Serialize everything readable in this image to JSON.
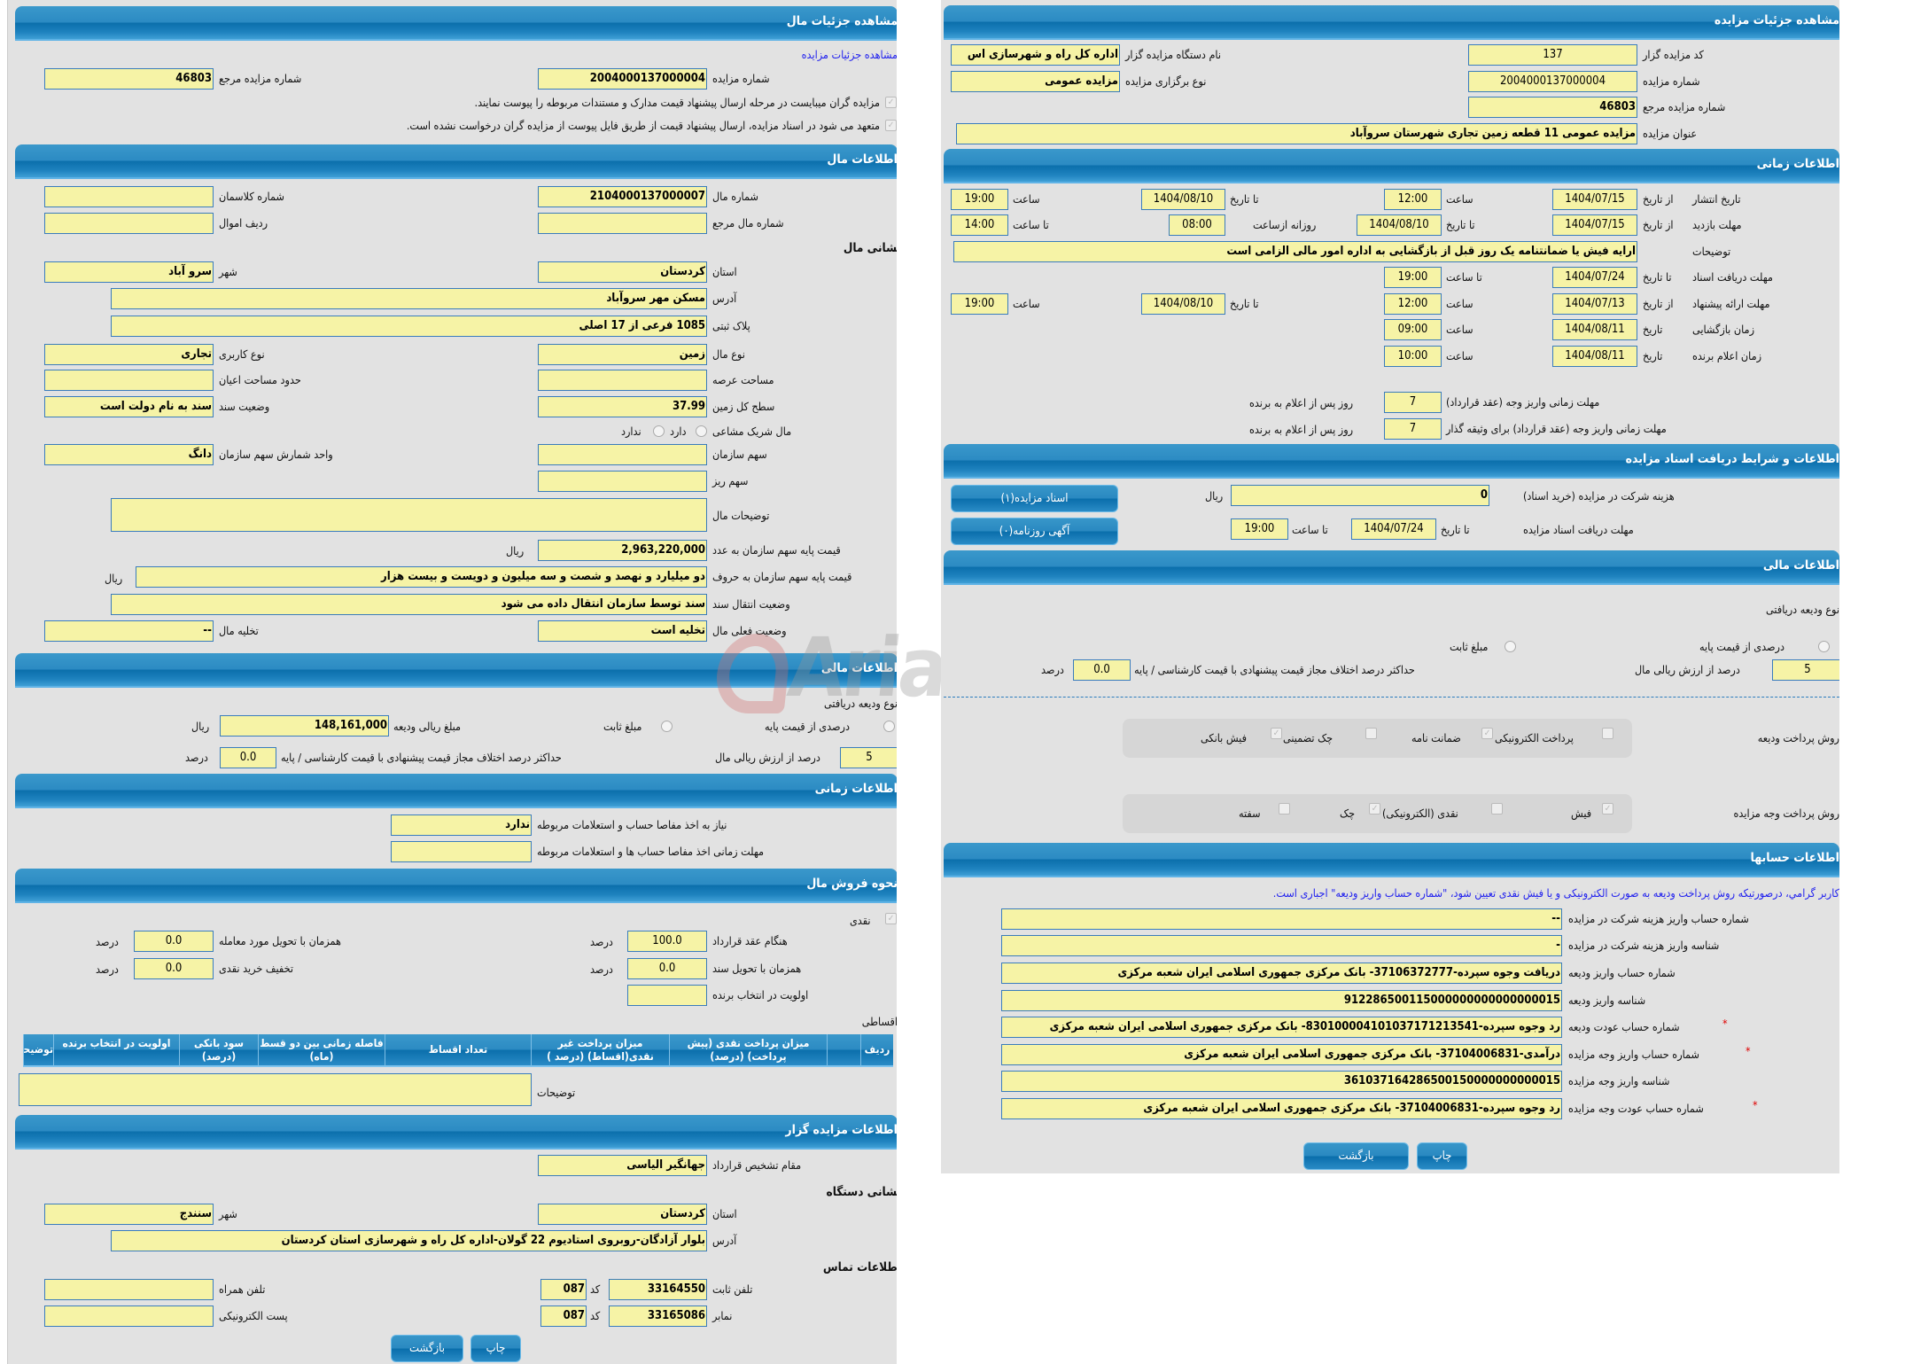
{
  "watermark": "AriaTender.neT",
  "colors": {
    "header": "#2c8bc3",
    "input_bg": "#f6f3a6",
    "input_border": "#3a7cbc",
    "panel_bg": "#e2e2e2",
    "link": "#2222ee",
    "required": "#e00000"
  },
  "left": {
    "title": "مشاهده جزئیات مال",
    "link": "مشاهده جزئیات مزایده",
    "auction_no_label": "شماره مزایده",
    "auction_no": "2004000137000004",
    "ref_no_label": "شماره مزایده مرجع",
    "ref_no": "46803",
    "check1": "مزایده گران میبایست در مرحله ارسال پیشنهاد قیمت مدارک و مستندات مربوطه را پیوست نمایند.",
    "check2": "متعهد می شود در اسناد مزایده، ارسال پیشنهاد قیمت از طریق فایل پیوست از مزایده گران درخواست نشده است.",
    "item_section": "اطلاعات مال",
    "item_no_label": "شماره مال",
    "item_no": "2104000137000007",
    "class_no_label": "شماره کلاسمان",
    "class_no": "",
    "item_ref_label": "شماره مال مرجع",
    "item_ref": "",
    "asset_row_label": "ردیف اموال",
    "asset_row": "",
    "address_heading": "نشانی مال",
    "province_label": "استان",
    "province": "کردستان",
    "city_label": "شهر",
    "city": "سرو آباد",
    "address_label": "آدرس",
    "address": "مسکن مهر سروآباد",
    "plaque_label": "پلاک ثبتی",
    "plaque": "1085 فرعی از 17 اصلی",
    "item_type_label": "نوع مال",
    "item_type": "زمین",
    "usage_label": "نوع کاربری",
    "usage": "تجاری",
    "land_area_label": "مساحت عرصه",
    "land_area": "",
    "building_area_label": "حدود مساحت اعیان",
    "building_area": "",
    "total_area_label": "سطح کل زمین",
    "total_area": "37.99",
    "deed_status_label": "وضعیت سند",
    "deed_status": "سند به نام دولت است",
    "partner_label": "مال شریک مشاعی",
    "partner_yes": "دارد",
    "partner_no": "ندارد",
    "org_share_label": "سهم سازمان",
    "org_share": "",
    "share_unit_label": "واحد شمارش سهم سازمان",
    "share_unit": "دانگ",
    "sub_share_label": "سهم ریز",
    "sub_share": "",
    "desc_label": "توضیحات مال",
    "desc": "",
    "base_price_num_label": "قیمت پایه سهم سازمان به عدد",
    "base_price_num": "2,963,220,000",
    "rial": "ریال",
    "base_price_words_label": "قیمت پایه سهم سازمان به حروف",
    "base_price_words": "دو میلیارد و نهصد و شصت و سه میلیون و دویست و بیست هزار",
    "transfer_label": "وضعیت انتقال سند",
    "transfer": "سند توسط سازمان انتقال داده می شود",
    "current_status_label": "وضعیت فعلی مال",
    "current_status": "تخلیه است",
    "evacuation_label": "تخلیه مال",
    "evacuation": "--",
    "finance_section": "اطلاعات مالی",
    "deposit_type_label": "نوع ودیعه دریافتی",
    "deposit_percent_label": "درصدی از قیمت پایه",
    "deposit_fixed_label": "مبلغ ثابت",
    "deposit_amount_label": "مبلغ ریالی ودیعه",
    "deposit_amount": "148,161,000",
    "deposit_pct": "5",
    "deposit_pct_label": "درصد از ارزش ریالی مال",
    "max_diff_label": "حداکثر درصد اختلاف مجاز قیمت پیشنهادی با قیمت کارشناسی / پایه",
    "max_diff": "0.0",
    "percent": "درصد",
    "time_section": "اطلاعات زمانی",
    "clearance_label": "نیاز به اخذ مفاصا حساب و استعلامات مربوطه",
    "clearance": "ندارد",
    "clearance_deadline_label": "مهلت زمانی اخذ مفاصا حساب ها و استعلامات مربوطه",
    "clearance_deadline": "",
    "sale_section": "نحوه فروش مال",
    "cash_label": "نقدی",
    "on_contract_label": "هنگام عقد قرارداد",
    "on_contract": "100.0",
    "on_delivery_label": "همزمان با تحویل مورد معامله",
    "on_delivery": "0.0",
    "on_deed_label": "همزمان با تحویل سند",
    "on_deed": "0.0",
    "cash_discount_label": "تخفیف خرید نقدی",
    "cash_discount": "0.0",
    "winner_priority_label": "اولویت در انتخاب برنده",
    "winner_priority": "",
    "installment_label": "اقساطی",
    "table_headers": [
      "ردیف",
      "",
      "میزان پرداخت نقدی (پیش پرداخت) (درصد)",
      "میزان پرداخت غیر نقدی(اقساط) (درصد )",
      "تعداد اقساط",
      "فاصله زمانی بین دو قسط (ماه)",
      "سود بانکی (درصد)",
      "اولویت در انتخاب برنده",
      "توضیحات"
    ],
    "notes_label": "توضیحات",
    "notes": "",
    "auctioneer_section": "اطلاعات مزایده گزار",
    "authority_label": "مقام تشخیص قرارداد",
    "authority": "جهانگیر الیاسی",
    "org_address_heading": "نشانی دستگاه",
    "org_province_label": "استان",
    "org_province": "کردستان",
    "org_city_label": "شهر",
    "org_city": "سنندج",
    "org_address_label": "آدرس",
    "org_address": "بلوار آزادگان-روبروی استادیوم 22 گولان-اداره کل راه و شهرسازی استان کردستان",
    "contact_heading": "اطلاعات تماس",
    "phone_label": "تلفن ثابت",
    "phone": "33164550",
    "code_label": "کد",
    "phone_code": "087",
    "mobile_label": "تلفن همراه",
    "mobile": "",
    "fax_label": "نمابر",
    "fax": "33165086",
    "fax_code": "087",
    "email_label": "پست الکترونیکی",
    "email": "",
    "back": "بازگشت",
    "print": "چاپ"
  },
  "right": {
    "title": "مشاهده جزئیات مزایده",
    "org_code_label": "کد مزایده گزار",
    "org_code": "137",
    "org_name_label": "نام دستگاه مزایده گزار",
    "org_name": "اداره کل راه و شهرسازی اس",
    "auction_no_label": "شماره مزایده",
    "auction_no": "2004000137000004",
    "holding_type_label": "نوع برگزاری مزایده",
    "holding_type": "مزایده عمومی",
    "ref_no_label": "شماره مزایده مرجع",
    "ref_no": "46803",
    "subject_label": "عنوان مزایده",
    "subject": "مزایده عمومی 11 قطعه زمین تجاری شهرستان سروآباد",
    "time_section": "اطلاعات زمانی",
    "from_date": "از تاریخ",
    "to_date": "تا تاریخ",
    "time": "ساعت",
    "to_time": "تا ساعت",
    "date": "تاریخ",
    "daily_from": "روزانه ازساعت",
    "publish_label": "تاریخ انتشار",
    "publish_from": "1404/07/15",
    "publish_from_time": "12:00",
    "publish_to": "1404/08/10",
    "publish_to_time": "19:00",
    "visit_label": "مهلت بازدید",
    "visit_from": "1404/07/15",
    "visit_to": "1404/08/10",
    "visit_daily_from": "08:00",
    "visit_to_time": "14:00",
    "desc_label": "توضیحات",
    "desc": "ارایه فیش یا ضمانتنامه یک روز قبل از بازگشایی به اداره امور مالی الزامی است",
    "docs_deadline_label": "مهلت دریافت اسناد",
    "docs_to": "1404/07/24",
    "docs_to_time": "19:00",
    "offer_label": "مهلت ارائه پیشنهاد",
    "offer_from": "1404/07/13",
    "offer_from_time": "12:00",
    "offer_to": "1404/08/10",
    "offer_to_time": "19:00",
    "opening_label": "زمان بازگشایی",
    "opening_date": "1404/08/11",
    "opening_time": "09:00",
    "winner_label": "زمان اعلام برنده",
    "winner_date": "1404/08/11",
    "winner_time": "10:00",
    "pay_deadline_label": "مهلت زمانی واریز وجه (عقد قرارداد)",
    "pay_deadline": "7",
    "pay_deadline_pledge_label": "مهلت زمانی واریز وجه (عقد قرارداد) برای وثیقه گذار",
    "pay_deadline_pledge": "7",
    "days_after": "روز پس از اعلام به برنده",
    "docs_section": "اطلاعات و شرایط دریافت اسناد مزایده",
    "fee_label": "هزینه شرکت در مزایده (خرید اسناد)",
    "fee": "0",
    "rial": "ریال",
    "docs_receive_label": "مهلت دریافت اسناد مزایده",
    "docs_receive_to": "1404/07/24",
    "docs_receive_time": "19:00",
    "docs_button": "اسناد مزایده(۱)",
    "ads_button": "آگهی روزنامه(۰)",
    "finance_section": "اطلاعات مالی",
    "deposit_type_label": "نوع ودیعه دریافتی",
    "deposit_percent_label": "درصدی از قیمت پایه",
    "deposit_fixed_label": "مبلغ ثابت",
    "deposit_pct": "5",
    "deposit_pct_label": "درصد از ارزش ریالی مال",
    "max_diff_label": "حداکثر درصد اختلاف مجاز قیمت پیشنهادی با قیمت کارشناسی / پایه",
    "max_diff": "0.0",
    "percent": "درصد",
    "deposit_method_label": "روش پرداخت ودیعه",
    "deposit_methods": [
      {
        "label": "پرداخت الکترونیکی",
        "checked": false
      },
      {
        "label": "ضمانت نامه",
        "checked": true
      },
      {
        "label": "چک تضمینی",
        "checked": false
      },
      {
        "label": "فیش بانکی",
        "checked": true
      }
    ],
    "payment_method_label": "روش پرداخت وجه مزایده",
    "payment_methods": [
      {
        "label": "فیش",
        "checked": true
      },
      {
        "label": "نقدی (الکترونیکی)",
        "checked": false
      },
      {
        "label": "چک",
        "checked": true
      },
      {
        "label": "سفته",
        "checked": false
      }
    ],
    "accounts_section": "اطلاعات حسابها",
    "accounts_note": "کاربر گرامي، درصورتیکه روش پرداخت ودیعه به صورت الکترونیکی و یا فیش نقدی تعیین شود، \"شماره حساب واریز ودیعه\" اجباری است.",
    "accounts": [
      {
        "label": "شماره حساب واریز هزینه شرکت در مزایده",
        "value": "--",
        "required": false
      },
      {
        "label": "شناسه واریز هزینه شرکت در مزایده",
        "value": "-",
        "required": false
      },
      {
        "label": "شماره حساب واریز ودیعه",
        "value": "دریافت وجوه سپرده-37106372777- بانک مرکزی جمهوری اسلامی ایران شعبه مرکزی",
        "required": false
      },
      {
        "label": "شناسه واریز ودیعه",
        "value": "912286500115000000000000000015",
        "required": false
      },
      {
        "label": "شماره حساب عودت ودیعه",
        "value": "رد وجوه سپرده-830100004101037171213541- بانک مرکزی جمهوری اسلامی ایران شعبه مرکزی",
        "required": true
      },
      {
        "label": "شماره حساب واریز وجه مزایده",
        "value": "درآمدی-37104006831- بانک مرکزی جمهوری اسلامی ایران شعبه مرکزی",
        "required": true
      },
      {
        "label": "شناسه واریز وجه مزایده",
        "value": "361037164286500150000000000015",
        "required": false
      },
      {
        "label": "شماره حساب عودت وجه مزایده",
        "value": "رد وجوه سپرده-37104006831- بانک مرکزی جمهوری اسلامی ایران شعبه مرکزی",
        "required": true
      }
    ],
    "required_mark": "*",
    "back": "بازگشت",
    "print": "چاپ"
  }
}
